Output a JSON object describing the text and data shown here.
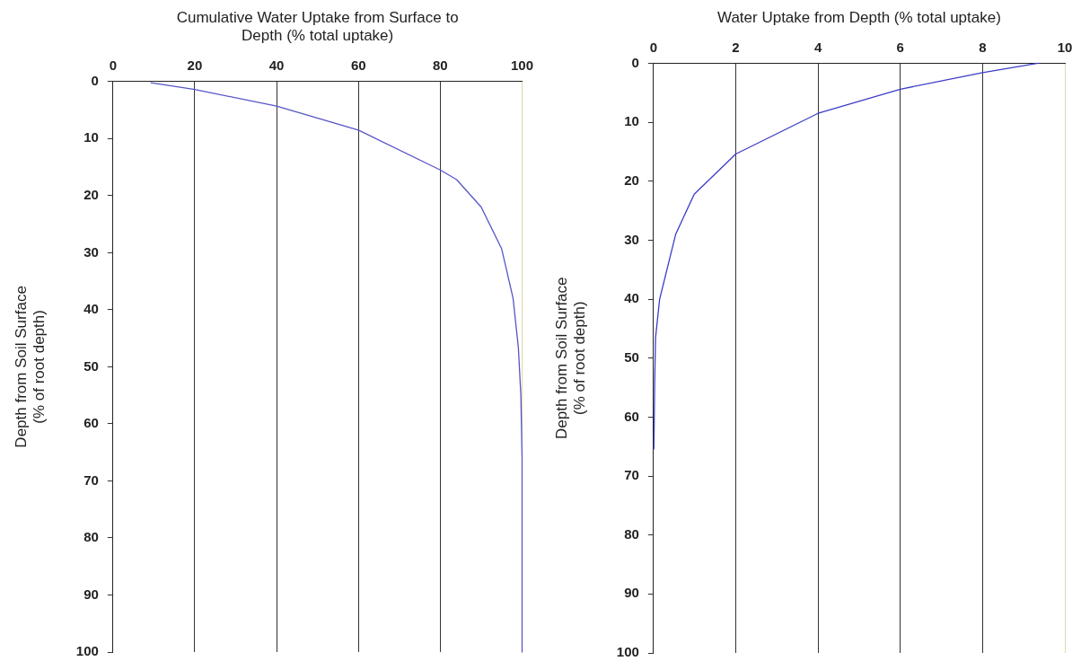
{
  "chart_data": [
    {
      "type": "line",
      "xlabel": "Cumulative Water Uptake from Surface to Depth (% total uptake)",
      "ylabel": "Depth from Soil Surface (% of root depth)",
      "x": [
        9.3,
        20,
        40,
        60,
        80,
        84,
        90,
        95,
        97.8,
        99.1,
        99.7,
        100,
        100
      ],
      "values": [
        0.2,
        1.4,
        4.3,
        8.5,
        15.5,
        17.2,
        22,
        29.3,
        38,
        46.7,
        55,
        66,
        100
      ],
      "color": "#5555c8",
      "xlim": [
        0,
        100
      ],
      "xticks": [
        0,
        20,
        40,
        60,
        80,
        100
      ],
      "ylim": [
        100,
        0
      ],
      "yticks": [
        0,
        10,
        20,
        30,
        40,
        50,
        60,
        70,
        80,
        90,
        100
      ],
      "grid": "x",
      "marker": "none",
      "line_style": "solid"
    },
    {
      "type": "line",
      "xlabel": "Water Uptake from Depth (% total uptake)",
      "ylabel": "Depth from Soil Surface (% of root depth)",
      "x": [
        9.35,
        8,
        6,
        4,
        2,
        0.99,
        0.54,
        0.15,
        0.05,
        0.03,
        0.01
      ],
      "values": [
        0,
        1.6,
        4.4,
        8.5,
        15.4,
        22.2,
        29,
        40,
        46.6,
        53.9,
        65.4
      ],
      "color": "#3c3cc8",
      "xlim": [
        0,
        10
      ],
      "xticks": [
        0,
        2,
        4,
        6,
        8,
        10
      ],
      "ylim": [
        100,
        0
      ],
      "yticks": [
        0,
        10,
        20,
        30,
        40,
        50,
        60,
        70,
        80,
        90,
        100
      ],
      "grid": "x",
      "marker": "none",
      "line_style": "solid"
    }
  ]
}
